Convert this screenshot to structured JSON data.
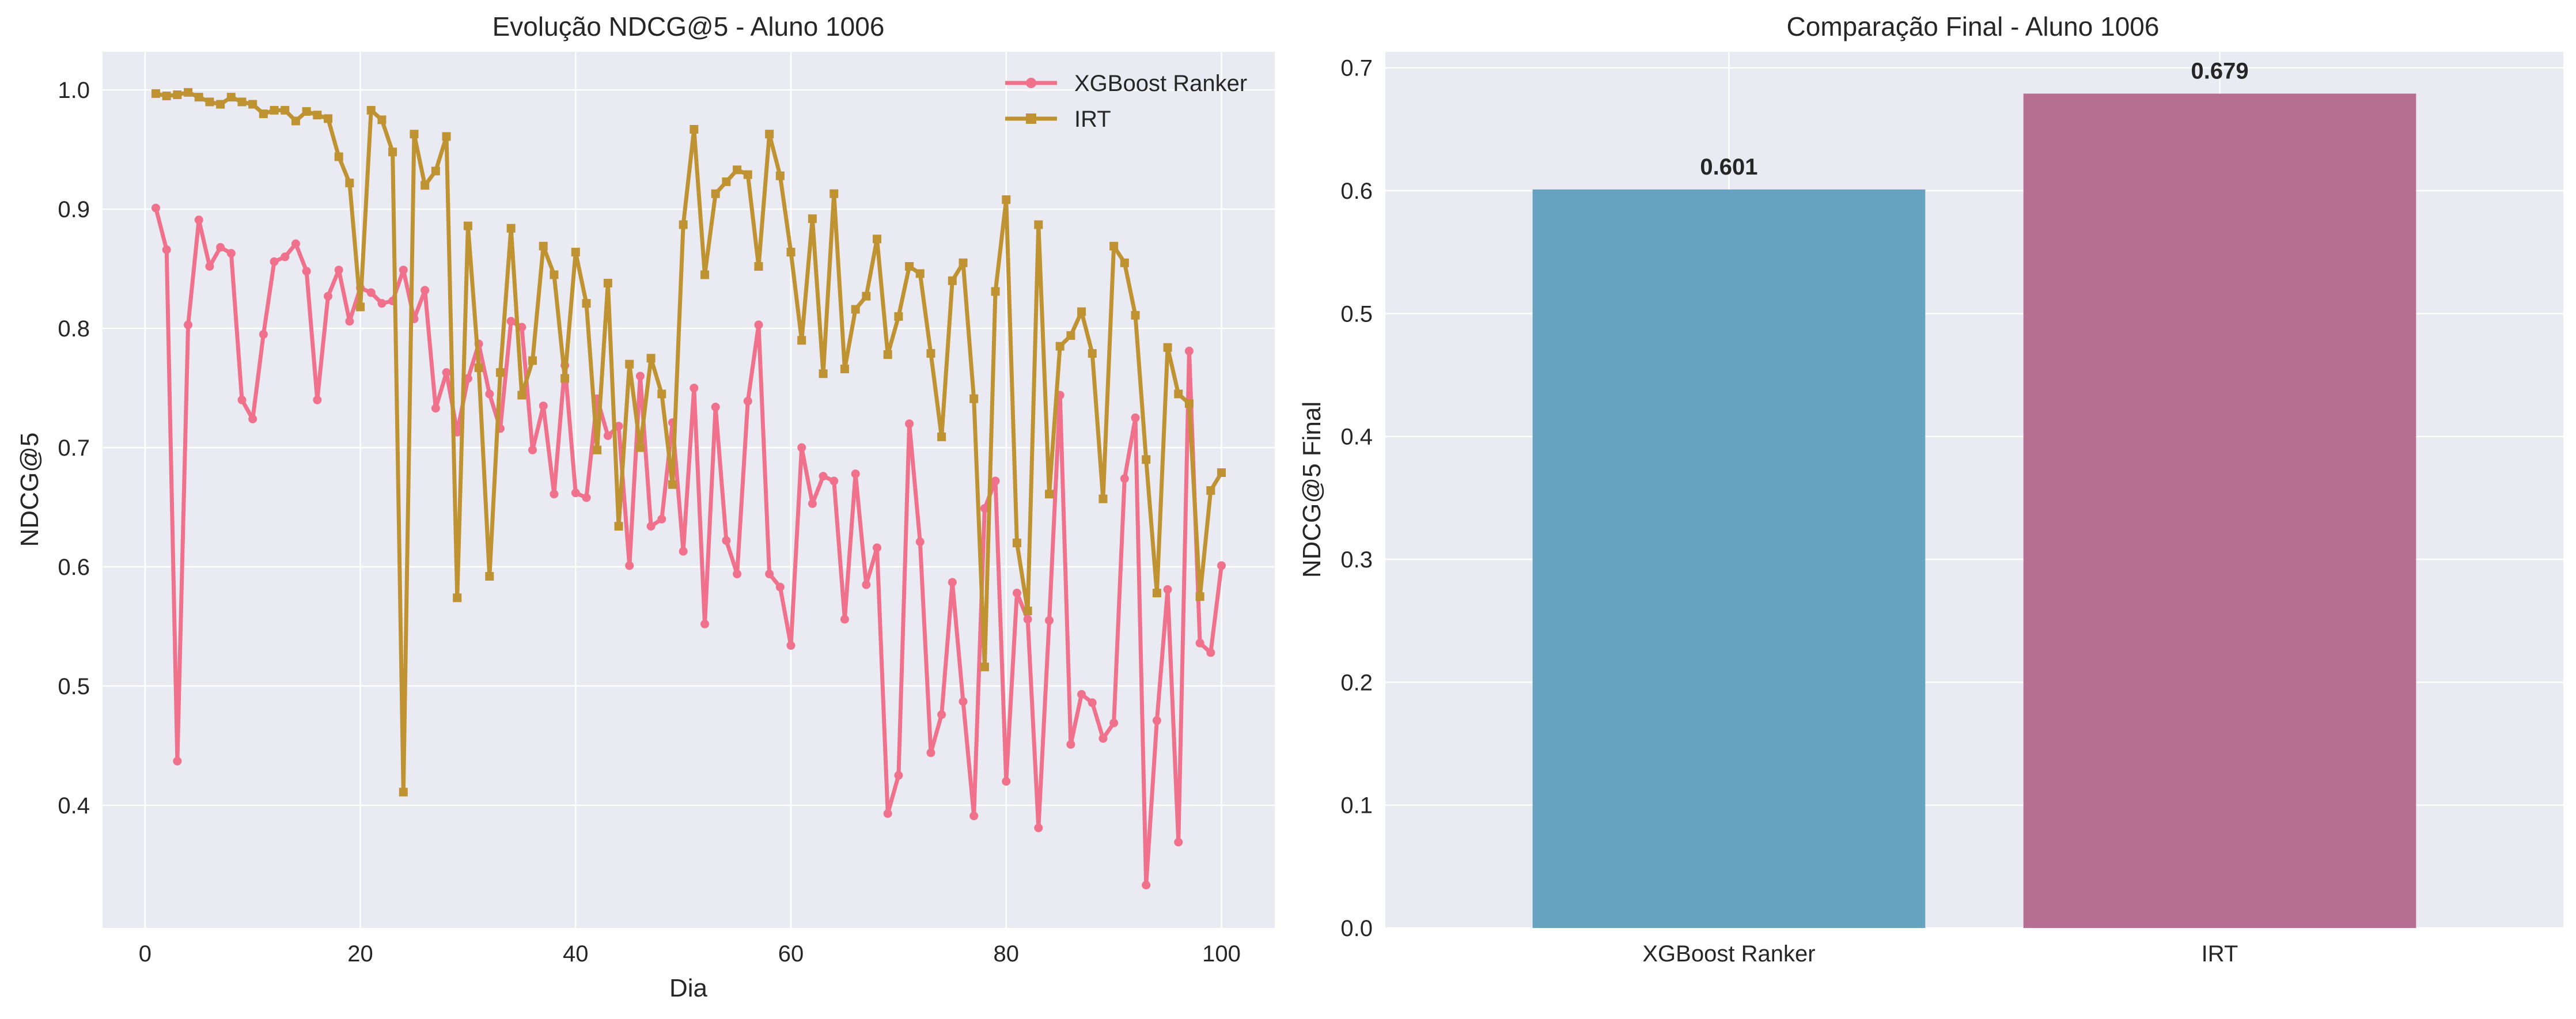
{
  "colors": {
    "xgb": "#f0718b",
    "irt": "#bf9232",
    "bar_xgb": "#66a3c0",
    "bar_irt": "#b76e93",
    "panel_bg": "#eaeaf2",
    "grid": "#ffffff",
    "text": "#262626"
  },
  "chart_data": [
    {
      "type": "line",
      "title": "Evolução NDCG@5 - Aluno 1006",
      "xlabel": "Dia",
      "ylabel": "NDCG@5",
      "xlim": [
        -3.95,
        104.95
      ],
      "ylim": [
        0.297,
        1.032
      ],
      "xticks": [
        0,
        20,
        40,
        60,
        80,
        100
      ],
      "yticks": [
        0.4,
        0.5,
        0.6,
        0.7,
        0.8,
        0.9,
        1.0
      ],
      "ytick_labels": [
        "0.4",
        "0.5",
        "0.6",
        "0.7",
        "0.8",
        "0.9",
        "1.0"
      ],
      "grid": true,
      "legend": "top-right",
      "x": [
        1,
        2,
        3,
        4,
        5,
        6,
        7,
        8,
        9,
        10,
        11,
        12,
        13,
        14,
        15,
        16,
        17,
        18,
        19,
        20,
        21,
        22,
        23,
        24,
        25,
        26,
        27,
        28,
        29,
        30,
        31,
        32,
        33,
        34,
        35,
        36,
        37,
        38,
        39,
        40,
        41,
        42,
        43,
        44,
        45,
        46,
        47,
        48,
        49,
        50,
        51,
        52,
        53,
        54,
        55,
        56,
        57,
        58,
        59,
        60,
        61,
        62,
        63,
        64,
        65,
        66,
        67,
        68,
        69,
        70,
        71,
        72,
        73,
        74,
        75,
        76,
        77,
        78,
        79,
        80,
        81,
        82,
        83,
        84,
        85,
        86,
        87,
        88,
        89,
        90,
        91,
        92,
        93,
        94,
        95,
        96,
        97,
        98,
        99,
        100
      ],
      "series": [
        {
          "name": "XGBoost Ranker",
          "marker": "circle",
          "values": [
            0.901,
            0.866,
            0.437,
            0.803,
            0.891,
            0.852,
            0.868,
            0.863,
            0.74,
            0.724,
            0.795,
            0.856,
            0.86,
            0.871,
            0.848,
            0.74,
            0.827,
            0.849,
            0.806,
            0.834,
            0.83,
            0.821,
            0.823,
            0.849,
            0.808,
            0.832,
            0.733,
            0.763,
            0.713,
            0.758,
            0.787,
            0.745,
            0.716,
            0.806,
            0.801,
            0.698,
            0.735,
            0.661,
            0.769,
            0.662,
            0.658,
            0.741,
            0.71,
            0.718,
            0.601,
            0.76,
            0.634,
            0.64,
            0.721,
            0.613,
            0.75,
            0.552,
            0.734,
            0.622,
            0.594,
            0.739,
            0.803,
            0.594,
            0.583,
            0.534,
            0.7,
            0.653,
            0.676,
            0.672,
            0.556,
            0.678,
            0.585,
            0.616,
            0.393,
            0.425,
            0.72,
            0.621,
            0.444,
            0.476,
            0.587,
            0.487,
            0.391,
            0.649,
            0.672,
            0.42,
            0.578,
            0.556,
            0.381,
            0.555,
            0.744,
            0.451,
            0.493,
            0.486,
            0.456,
            0.469,
            0.674,
            0.725,
            0.333,
            0.471,
            0.581,
            0.369,
            0.781,
            0.536,
            0.528,
            0.601
          ]
        },
        {
          "name": "IRT",
          "marker": "square",
          "values": [
            0.997,
            0.995,
            0.996,
            0.998,
            0.994,
            0.99,
            0.988,
            0.994,
            0.99,
            0.988,
            0.98,
            0.983,
            0.983,
            0.974,
            0.982,
            0.979,
            0.976,
            0.944,
            0.922,
            0.818,
            0.983,
            0.975,
            0.948,
            0.411,
            0.963,
            0.92,
            0.932,
            0.961,
            0.574,
            0.886,
            0.767,
            0.592,
            0.763,
            0.884,
            0.744,
            0.773,
            0.869,
            0.845,
            0.758,
            0.864,
            0.821,
            0.698,
            0.838,
            0.634,
            0.77,
            0.7,
            0.775,
            0.745,
            0.669,
            0.887,
            0.967,
            0.845,
            0.913,
            0.923,
            0.933,
            0.929,
            0.852,
            0.963,
            0.928,
            0.864,
            0.79,
            0.892,
            0.762,
            0.913,
            0.766,
            0.816,
            0.827,
            0.875,
            0.778,
            0.81,
            0.852,
            0.846,
            0.779,
            0.709,
            0.84,
            0.855,
            0.741,
            0.516,
            0.831,
            0.908,
            0.62,
            0.563,
            0.887,
            0.661,
            0.785,
            0.794,
            0.814,
            0.779,
            0.657,
            0.869,
            0.855,
            0.811,
            0.69,
            0.578,
            0.784,
            0.745,
            0.737,
            0.575,
            0.664,
            0.679
          ]
        }
      ]
    },
    {
      "type": "bar",
      "title": "Comparação Final - Aluno 1006",
      "xlabel": "",
      "ylabel": "NDCG@5 Final",
      "categories": [
        "XGBoost Ranker",
        "IRT"
      ],
      "values": [
        0.601,
        0.679
      ],
      "value_labels": [
        "0.601",
        "0.679"
      ],
      "ylim": [
        0,
        0.713
      ],
      "yticks": [
        0.0,
        0.1,
        0.2,
        0.3,
        0.4,
        0.5,
        0.6,
        0.7
      ],
      "ytick_labels": [
        "0.0",
        "0.1",
        "0.2",
        "0.3",
        "0.4",
        "0.5",
        "0.6",
        "0.7"
      ],
      "grid": true
    }
  ]
}
